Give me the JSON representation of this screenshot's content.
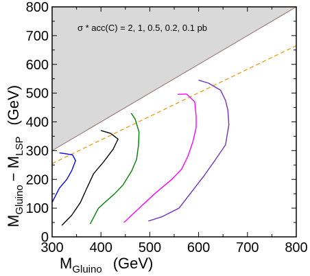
{
  "chart_data": {
    "type": "line",
    "annotation": "σ * acc(C) = 2,  1,  0.5,  0.2,  0.1 pb",
    "xlabel": {
      "main": "M",
      "sub": "Gluino",
      "unit": "(GeV)"
    },
    "ylabel": {
      "main1": "M",
      "sub1": "Gluino",
      "mid": "− M",
      "sub2": "LSP",
      "unit": "(GeV)"
    },
    "xlim": [
      300,
      800
    ],
    "ylim": [
      0,
      800
    ],
    "xticks": [
      "300",
      "400",
      "500",
      "600",
      "700",
      "800"
    ],
    "yticks": [
      "0",
      "100",
      "200",
      "300",
      "400",
      "500",
      "600",
      "700",
      "800"
    ],
    "excluded_region": {
      "color": "#d9d9d9",
      "boundary": [
        [
          300,
          300
        ],
        [
          800,
          800
        ]
      ],
      "boundary_color": "#a08080"
    },
    "reference_line": {
      "color": "#f0a020",
      "style": "dashed",
      "points": [
        [
          300,
          255
        ],
        [
          800,
          665
        ]
      ]
    },
    "series": [
      {
        "color": "#0000ff",
        "points": [
          [
            300,
            120
          ],
          [
            315,
            170
          ],
          [
            330,
            200
          ],
          [
            340,
            230
          ],
          [
            348,
            265
          ],
          [
            342,
            285
          ],
          [
            325,
            290
          ],
          [
            315,
            292
          ]
        ]
      },
      {
        "color": "#000000",
        "points": [
          [
            320,
            40
          ],
          [
            340,
            75
          ],
          [
            358,
            120
          ],
          [
            370,
            165
          ],
          [
            385,
            220
          ],
          [
            405,
            260
          ],
          [
            425,
            305
          ],
          [
            435,
            340
          ],
          [
            420,
            360
          ],
          [
            400,
            370
          ]
        ]
      },
      {
        "color": "#008000",
        "points": [
          [
            378,
            45
          ],
          [
            395,
            100
          ],
          [
            428,
            150
          ],
          [
            445,
            180
          ],
          [
            463,
            230
          ],
          [
            473,
            270
          ],
          [
            477,
            320
          ],
          [
            478,
            365
          ],
          [
            470,
            410
          ],
          [
            462,
            430
          ]
        ]
      },
      {
        "color": "#ff00ff",
        "points": [
          [
            447,
            50
          ],
          [
            472,
            90
          ],
          [
            510,
            150
          ],
          [
            545,
            200
          ],
          [
            565,
            235
          ],
          [
            578,
            280
          ],
          [
            588,
            330
          ],
          [
            595,
            380
          ],
          [
            595,
            420
          ],
          [
            592,
            470
          ],
          [
            575,
            497
          ],
          [
            557,
            496
          ]
        ]
      },
      {
        "color": "#7030c0",
        "points": [
          [
            497,
            55
          ],
          [
            525,
            70
          ],
          [
            560,
            100
          ],
          [
            585,
            155
          ],
          [
            610,
            210
          ],
          [
            633,
            265
          ],
          [
            655,
            320
          ],
          [
            662,
            390
          ],
          [
            660,
            440
          ],
          [
            655,
            475
          ],
          [
            645,
            510
          ],
          [
            620,
            535
          ],
          [
            600,
            545
          ]
        ]
      }
    ]
  }
}
